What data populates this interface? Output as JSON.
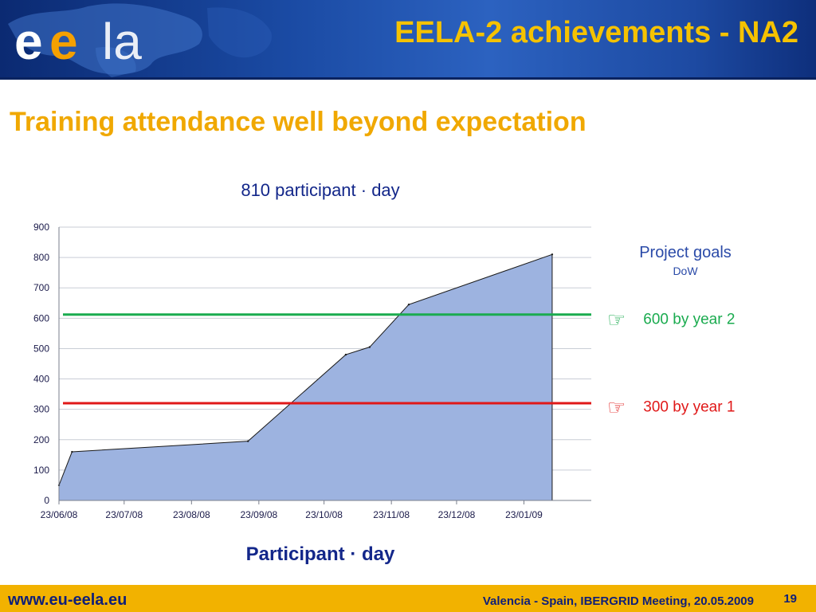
{
  "header": {
    "title": "EELA-2 achievements - NA2",
    "logo": {
      "text": "eela",
      "accent_color": "#f5a000",
      "name": "eela-logo"
    }
  },
  "subtitle": "Training attendance well beyond expectation",
  "chart_data": {
    "type": "area",
    "title": "810 participant · day",
    "xlabel": "Participant · day",
    "ylabel": "",
    "ylim": [
      0,
      900
    ],
    "yticks": [
      0,
      100,
      200,
      300,
      400,
      500,
      600,
      700,
      800,
      900
    ],
    "xtick_labels": [
      "23/06/08",
      "23/07/08",
      "23/08/08",
      "23/09/08",
      "23/10/08",
      "23/11/08",
      "23/12/08",
      "23/01/09"
    ],
    "x": [
      "2008-06-23",
      "2008-06-29",
      "2008-09-18",
      "2008-11-02",
      "2008-11-13",
      "2008-12-01",
      "2009-02-05"
    ],
    "series": [
      {
        "values": [
          50,
          160,
          195,
          480,
          505,
          645,
          810
        ],
        "color": "#9db3e0"
      }
    ],
    "reference_lines": [
      {
        "label": "600 by year 2",
        "value": 612,
        "color": "#1aab4f"
      },
      {
        "label": "300 by year 1",
        "value": 320,
        "color": "#e01818"
      }
    ],
    "grid": true
  },
  "goals": {
    "title": "Project goals",
    "subtitle": "DoW",
    "hand_icon": "pointing-hand-icon",
    "items": [
      {
        "label": "600 by year 2",
        "color": "#1aab4f"
      },
      {
        "label": "300 by year 1",
        "color": "#e01818"
      }
    ]
  },
  "footer": {
    "url": "www.eu-eela.eu",
    "event": "Valencia - Spain, IBERGRID Meeting, 20.05.2009",
    "page": "19"
  }
}
